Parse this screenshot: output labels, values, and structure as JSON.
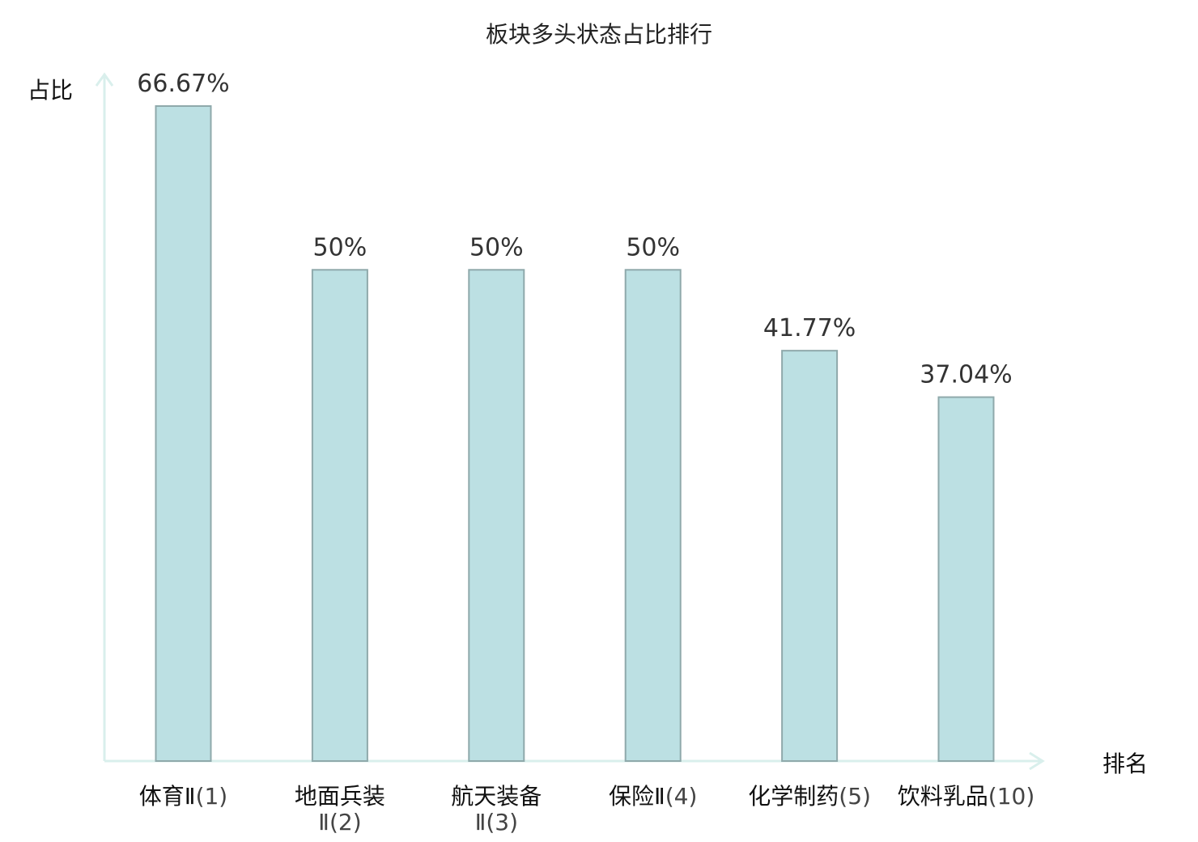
{
  "chart_data": {
    "type": "bar",
    "title": "板块多头状态占比排行",
    "ylabel": "占比",
    "xlabel": "排名",
    "ylim": [
      0,
      70
    ],
    "grid": false,
    "categories": [
      "体育Ⅱ(1)",
      "地面兵装Ⅱ(2)",
      "航天装备Ⅱ(3)",
      "保险Ⅱ(4)",
      "化学制药(5)",
      "饮料乳品(10)"
    ],
    "category_parts": [
      {
        "name": "体育Ⅱ",
        "rank": "(1)"
      },
      {
        "name": "地面兵装",
        "rank": "Ⅱ(2)"
      },
      {
        "name": "航天装备",
        "rank": "Ⅱ(3)"
      },
      {
        "name": "保险Ⅱ",
        "rank": "(4)"
      },
      {
        "name": "化学制药",
        "rank": "(5)"
      },
      {
        "name": "饮料乳品",
        "rank": "(10)"
      }
    ],
    "values": [
      66.67,
      50,
      50,
      50,
      41.77,
      37.04
    ],
    "value_labels": [
      "66.67%",
      "50%",
      "50%",
      "50%",
      "41.77%",
      "37.04%"
    ],
    "highlight_index": 5,
    "colors": {
      "bar_fill": "#bce0e3",
      "bar_stroke": "#8fa9ab",
      "axis": "#d9efec",
      "highlight_text": "#e0191e",
      "text": "#222222"
    }
  }
}
